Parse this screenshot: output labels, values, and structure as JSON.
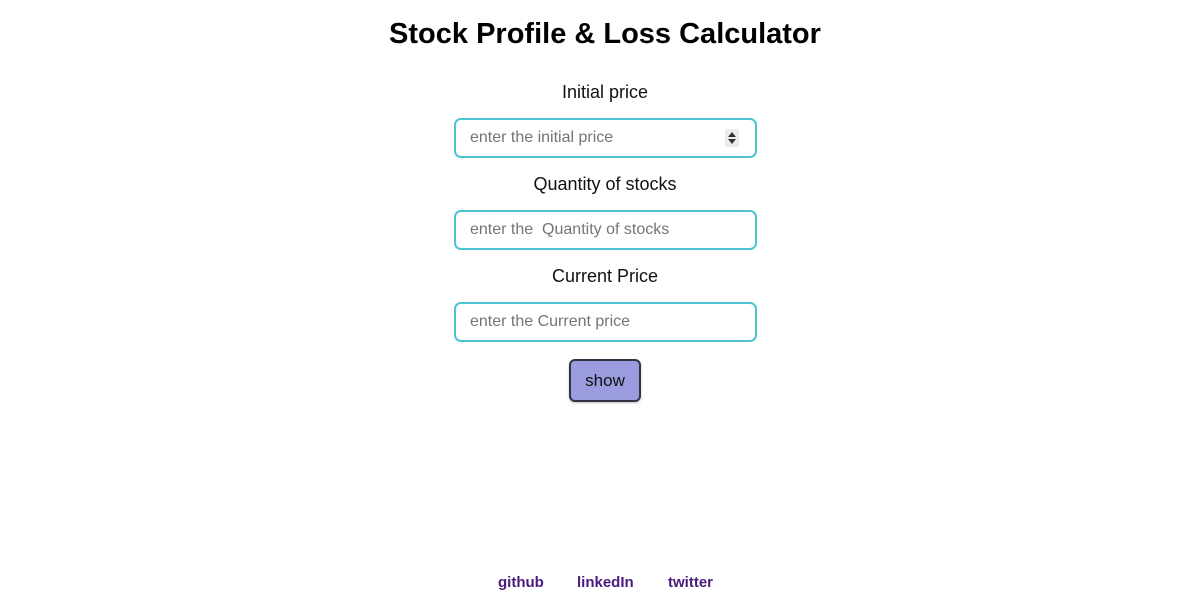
{
  "page": {
    "title": "Stock Profile & Loss Calculator"
  },
  "form": {
    "initial_price": {
      "label": "Initial price",
      "placeholder": "enter the initial price",
      "value": ""
    },
    "quantity": {
      "label": "Quantity of stocks",
      "placeholder": "enter the  Quantity of stocks",
      "value": ""
    },
    "current_price": {
      "label": "Current Price",
      "placeholder": "enter the Current price",
      "value": ""
    },
    "show_button_label": "show"
  },
  "footer": {
    "links": [
      {
        "label": "github"
      },
      {
        "label": "linkedIn"
      },
      {
        "label": "twitter"
      }
    ]
  },
  "colors": {
    "input_border": "#4ec3d3",
    "button_bg": "#9b9bdf",
    "link_color": "#4b1a7d"
  },
  "icons": {
    "number_spinner": "spinner-icon"
  }
}
